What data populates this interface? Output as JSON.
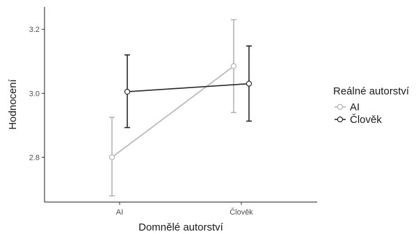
{
  "chart_data": {
    "type": "line",
    "xlabel": "Domnělé autorství",
    "ylabel": "Hodnocení",
    "categories": [
      "AI",
      "Člověk"
    ],
    "y_ticks": [
      "2.8",
      "3.0",
      "3.2"
    ],
    "ylim": [
      2.66,
      3.27
    ],
    "legend": {
      "title": "Reálné autorství",
      "position": "right"
    },
    "grid": false,
    "series": [
      {
        "name": "AI",
        "color": "#b3b3b3",
        "values": [
          2.8,
          3.085
        ],
        "lower": [
          2.68,
          2.94
        ],
        "upper": [
          2.925,
          3.23
        ]
      },
      {
        "name": "Člověk",
        "color": "#262626",
        "values": [
          3.005,
          3.03
        ],
        "lower": [
          2.893,
          2.913
        ],
        "upper": [
          3.12,
          3.148
        ]
      }
    ]
  }
}
